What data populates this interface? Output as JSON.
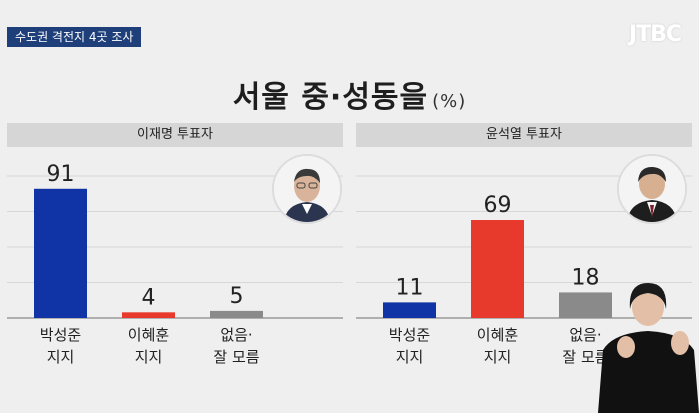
{
  "header": {
    "tag": "수도권 격전지 4곳 조사",
    "logo": "JTBC"
  },
  "title": {
    "main": "서울 중·성동을",
    "unit": "(%)"
  },
  "colors": {
    "blue": "#1034a6",
    "red": "#e8392d",
    "gray": "#8a8a8a"
  },
  "chart_data": [
    {
      "type": "bar",
      "title": "이재명 투표자",
      "categories": [
        "박성준\n지지",
        "이혜훈\n지지",
        "없음·\n잘 모름"
      ],
      "values": [
        91,
        4,
        5
      ],
      "bar_colors": [
        "#1034a6",
        "#e8392d",
        "#8a8a8a"
      ],
      "ylim": [
        0,
        100
      ],
      "grid": true
    },
    {
      "type": "bar",
      "title": "윤석열 투표자",
      "categories": [
        "박성준\n지지",
        "이혜훈\n지지",
        "없음·\n잘 모름"
      ],
      "values": [
        11,
        69,
        18
      ],
      "bar_colors": [
        "#1034a6",
        "#e8392d",
        "#8a8a8a"
      ],
      "ylim": [
        0,
        100
      ],
      "grid": true
    }
  ]
}
